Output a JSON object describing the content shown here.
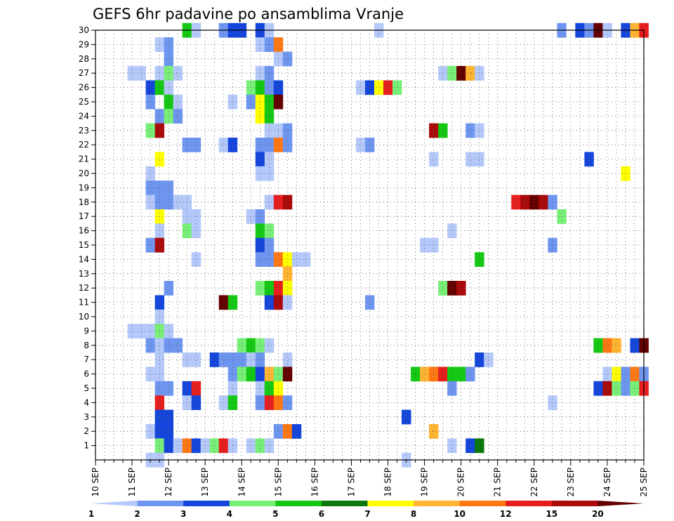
{
  "chart_data": {
    "type": "heatmap",
    "title": "GEFS 6hr padavine po ansamblima Vranje",
    "x_ticks": [
      {
        "label": "10 SEP",
        "day": 10
      },
      {
        "label": "11 SEP",
        "day": 11
      },
      {
        "label": "12 SEP",
        "day": 12
      },
      {
        "label": "13 SEP",
        "day": 13
      },
      {
        "label": "14 SEP",
        "day": 14
      },
      {
        "label": "15 SEP",
        "day": 15
      },
      {
        "label": "16 SEP",
        "day": 16
      },
      {
        "label": "17 SEP",
        "day": 17
      },
      {
        "label": "18 SEP",
        "day": 18
      },
      {
        "label": "19 SEP",
        "day": 19
      },
      {
        "label": "20 SEP",
        "day": 20
      },
      {
        "label": "21 SEP",
        "day": 21
      },
      {
        "label": "22 SEP",
        "day": 22
      },
      {
        "label": "23 SEP",
        "day": 23
      },
      {
        "label": "24 SEP",
        "day": 24
      },
      {
        "label": "25 SEP",
        "day": 25
      }
    ],
    "x_range": [
      10,
      25
    ],
    "y_ticks": [
      "1",
      "2",
      "3",
      "4",
      "5",
      "6",
      "7",
      "8",
      "9",
      "10",
      "11",
      "12",
      "13",
      "14",
      "15",
      "16",
      "17",
      "18",
      "19",
      "20",
      "21",
      "22",
      "23",
      "24",
      "25",
      "26",
      "27",
      "28",
      "29",
      "30"
    ],
    "y_range": [
      0,
      30
    ],
    "grid": true,
    "legend": {
      "placement": "bottom",
      "labels": [
        "1",
        "2",
        "3",
        "4",
        "5",
        "6",
        "7",
        "8",
        "10",
        "12",
        "15",
        "20"
      ],
      "colors": [
        "#b4c8fa",
        "#6e96f0",
        "#1446dc",
        "#78f078",
        "#14c814",
        "#0a780a",
        "#ffff00",
        "#ffb432",
        "#ff7814",
        "#e61e1e",
        "#aa0a0a",
        "#640000"
      ]
    },
    "cells": [
      [
        30,
        12.5,
        5
      ],
      [
        30,
        12.75,
        1
      ],
      [
        30,
        13.5,
        2
      ],
      [
        30,
        13.75,
        3
      ],
      [
        30,
        14,
        3
      ],
      [
        30,
        14.5,
        3
      ],
      [
        30,
        14.75,
        1
      ],
      [
        30,
        17.75,
        1
      ],
      [
        30,
        22.75,
        2
      ],
      [
        30,
        23.25,
        3
      ],
      [
        30,
        23.5,
        2
      ],
      [
        30,
        23.75,
        12
      ],
      [
        30,
        24,
        1
      ],
      [
        30,
        24.5,
        3
      ],
      [
        30,
        24.75,
        8
      ],
      [
        30,
        25,
        10
      ],
      [
        29,
        11.75,
        1
      ],
      [
        29,
        12,
        2
      ],
      [
        29,
        14.5,
        1
      ],
      [
        29,
        14.75,
        2
      ],
      [
        29,
        15,
        9
      ],
      [
        28,
        12,
        2
      ],
      [
        28,
        15,
        1
      ],
      [
        28,
        15.25,
        2
      ],
      [
        27,
        11,
        1
      ],
      [
        27,
        11.25,
        1
      ],
      [
        27,
        11.75,
        1
      ],
      [
        27,
        12,
        4
      ],
      [
        27,
        12.25,
        1
      ],
      [
        27,
        14.5,
        1
      ],
      [
        27,
        14.75,
        2
      ],
      [
        27,
        19.5,
        1
      ],
      [
        27,
        19.75,
        4
      ],
      [
        27,
        20,
        12
      ],
      [
        27,
        20.25,
        8
      ],
      [
        27,
        20.5,
        1
      ],
      [
        26,
        11.5,
        3
      ],
      [
        26,
        11.75,
        5
      ],
      [
        26,
        12,
        1
      ],
      [
        26,
        14.25,
        4
      ],
      [
        26,
        14.5,
        5
      ],
      [
        26,
        14.75,
        2
      ],
      [
        26,
        15,
        3
      ],
      [
        26,
        17.25,
        1
      ],
      [
        26,
        17.5,
        3
      ],
      [
        26,
        17.75,
        7
      ],
      [
        26,
        18,
        10
      ],
      [
        26,
        18.25,
        4
      ],
      [
        25,
        11.5,
        2
      ],
      [
        25,
        12,
        5
      ],
      [
        25,
        12.25,
        1
      ],
      [
        25,
        13.75,
        1
      ],
      [
        25,
        14.25,
        2
      ],
      [
        25,
        14.5,
        7
      ],
      [
        25,
        14.75,
        5
      ],
      [
        25,
        15,
        12
      ],
      [
        24,
        11.75,
        2
      ],
      [
        24,
        12,
        4
      ],
      [
        24,
        12.25,
        2
      ],
      [
        24,
        14.5,
        7
      ],
      [
        24,
        14.75,
        5
      ],
      [
        23,
        11.5,
        4
      ],
      [
        23,
        11.75,
        11
      ],
      [
        23,
        14.75,
        1
      ],
      [
        23,
        15,
        1
      ],
      [
        23,
        15.25,
        2
      ],
      [
        23,
        19.25,
        11
      ],
      [
        23,
        19.5,
        5
      ],
      [
        23,
        20.25,
        2
      ],
      [
        23,
        20.5,
        1
      ],
      [
        22,
        12.5,
        2
      ],
      [
        22,
        12.75,
        2
      ],
      [
        22,
        13.5,
        1
      ],
      [
        22,
        13.75,
        3
      ],
      [
        22,
        14.5,
        2
      ],
      [
        22,
        14.75,
        2
      ],
      [
        22,
        15,
        9
      ],
      [
        22,
        15.25,
        2
      ],
      [
        22,
        17.25,
        1
      ],
      [
        22,
        17.5,
        2
      ],
      [
        21,
        11.75,
        7
      ],
      [
        21,
        14.5,
        3
      ],
      [
        21,
        14.75,
        1
      ],
      [
        21,
        19.25,
        1
      ],
      [
        21,
        20.25,
        1
      ],
      [
        21,
        20.5,
        1
      ],
      [
        21,
        23.5,
        3
      ],
      [
        20,
        11.5,
        1
      ],
      [
        20,
        14.5,
        1
      ],
      [
        20,
        14.75,
        1
      ],
      [
        20,
        24.5,
        7
      ],
      [
        19,
        11.5,
        2
      ],
      [
        19,
        11.75,
        2
      ],
      [
        19,
        12,
        2
      ],
      [
        18,
        11.5,
        1
      ],
      [
        18,
        11.75,
        2
      ],
      [
        18,
        12,
        2
      ],
      [
        18,
        12.25,
        1
      ],
      [
        18,
        12.5,
        1
      ],
      [
        18,
        14.75,
        1
      ],
      [
        18,
        15,
        10
      ],
      [
        18,
        15.25,
        11
      ],
      [
        18,
        21.5,
        10
      ],
      [
        18,
        21.75,
        11
      ],
      [
        18,
        22,
        12
      ],
      [
        18,
        22.25,
        11
      ],
      [
        18,
        22.5,
        2
      ],
      [
        17,
        11.75,
        7
      ],
      [
        17,
        12.5,
        1
      ],
      [
        17,
        12.75,
        1
      ],
      [
        17,
        14.25,
        1
      ],
      [
        17,
        14.5,
        2
      ],
      [
        17,
        22.75,
        4
      ],
      [
        16,
        11.75,
        1
      ],
      [
        16,
        12.5,
        4
      ],
      [
        16,
        12.75,
        1
      ],
      [
        16,
        14.5,
        5
      ],
      [
        16,
        14.75,
        4
      ],
      [
        16,
        19.75,
        1
      ],
      [
        15,
        11.5,
        2
      ],
      [
        15,
        11.75,
        11
      ],
      [
        15,
        14.5,
        3
      ],
      [
        15,
        14.75,
        2
      ],
      [
        15,
        19,
        1
      ],
      [
        15,
        19.25,
        1
      ],
      [
        15,
        22.5,
        2
      ],
      [
        14,
        12.75,
        1
      ],
      [
        14,
        14.5,
        2
      ],
      [
        14,
        14.75,
        2
      ],
      [
        14,
        15,
        9
      ],
      [
        14,
        15.25,
        7
      ],
      [
        14,
        15.5,
        1
      ],
      [
        14,
        15.75,
        1
      ],
      [
        14,
        20.5,
        5
      ],
      [
        13,
        15.25,
        8
      ],
      [
        12,
        12,
        2
      ],
      [
        12,
        14.5,
        4
      ],
      [
        12,
        14.75,
        5
      ],
      [
        12,
        15,
        10
      ],
      [
        12,
        15.25,
        7
      ],
      [
        12,
        19.5,
        4
      ],
      [
        12,
        19.75,
        12
      ],
      [
        12,
        20,
        11
      ],
      [
        11,
        11.75,
        3
      ],
      [
        11,
        13.5,
        12
      ],
      [
        11,
        13.75,
        5
      ],
      [
        11,
        14.75,
        3
      ],
      [
        11,
        15,
        11
      ],
      [
        11,
        15.25,
        1
      ],
      [
        11,
        17.5,
        2
      ],
      [
        10,
        11.75,
        1
      ],
      [
        9,
        11,
        1
      ],
      [
        9,
        11.25,
        1
      ],
      [
        9,
        11.5,
        1
      ],
      [
        9,
        11.75,
        4
      ],
      [
        9,
        12,
        1
      ],
      [
        8,
        11.5,
        2
      ],
      [
        8,
        11.75,
        1
      ],
      [
        8,
        12,
        2
      ],
      [
        8,
        12.25,
        2
      ],
      [
        8,
        14,
        4
      ],
      [
        8,
        14.25,
        5
      ],
      [
        8,
        14.5,
        4
      ],
      [
        8,
        14.75,
        1
      ],
      [
        8,
        23.75,
        5
      ],
      [
        8,
        24,
        9
      ],
      [
        8,
        24.25,
        8
      ],
      [
        8,
        24.75,
        3
      ],
      [
        8,
        25,
        12
      ],
      [
        7,
        11.75,
        1
      ],
      [
        7,
        12.5,
        1
      ],
      [
        7,
        12.75,
        1
      ],
      [
        7,
        13.25,
        3
      ],
      [
        7,
        13.5,
        2
      ],
      [
        7,
        13.75,
        2
      ],
      [
        7,
        14,
        2
      ],
      [
        7,
        14.25,
        1
      ],
      [
        7,
        14.5,
        2
      ],
      [
        7,
        15.25,
        1
      ],
      [
        7,
        20.5,
        3
      ],
      [
        7,
        20.75,
        1
      ],
      [
        6,
        11.5,
        1
      ],
      [
        6,
        11.75,
        1
      ],
      [
        6,
        13.75,
        2
      ],
      [
        6,
        14,
        4
      ],
      [
        6,
        14.25,
        5
      ],
      [
        6,
        14.5,
        3
      ],
      [
        6,
        14.75,
        8
      ],
      [
        6,
        15,
        4
      ],
      [
        6,
        15.25,
        12
      ],
      [
        6,
        18.75,
        5
      ],
      [
        6,
        19,
        8
      ],
      [
        6,
        19.25,
        9
      ],
      [
        6,
        19.5,
        10
      ],
      [
        6,
        19.75,
        5
      ],
      [
        6,
        20,
        5
      ],
      [
        6,
        20.25,
        2
      ],
      [
        6,
        24,
        1
      ],
      [
        6,
        24.25,
        7
      ],
      [
        6,
        24.5,
        2
      ],
      [
        6,
        24.75,
        9
      ],
      [
        6,
        25,
        2
      ],
      [
        5,
        11.75,
        2
      ],
      [
        5,
        12,
        2
      ],
      [
        5,
        12.5,
        3
      ],
      [
        5,
        12.75,
        10
      ],
      [
        5,
        13.75,
        1
      ],
      [
        5,
        14.5,
        1
      ],
      [
        5,
        14.75,
        5
      ],
      [
        5,
        15,
        7
      ],
      [
        5,
        19.75,
        2
      ],
      [
        5,
        23.75,
        3
      ],
      [
        5,
        24,
        11
      ],
      [
        5,
        24.25,
        4
      ],
      [
        5,
        24.5,
        2
      ],
      [
        5,
        24.75,
        4
      ],
      [
        5,
        25,
        10
      ],
      [
        4,
        11.75,
        10
      ],
      [
        4,
        12.5,
        1
      ],
      [
        4,
        12.75,
        3
      ],
      [
        4,
        13.5,
        1
      ],
      [
        4,
        13.75,
        5
      ],
      [
        4,
        14.5,
        2
      ],
      [
        4,
        14.75,
        10
      ],
      [
        4,
        15,
        9
      ],
      [
        4,
        15.25,
        2
      ],
      [
        4,
        22.5,
        1
      ],
      [
        3,
        11.75,
        3
      ],
      [
        3,
        12,
        3
      ],
      [
        3,
        18.5,
        3
      ],
      [
        2,
        11.5,
        1
      ],
      [
        2,
        11.75,
        3
      ],
      [
        2,
        12,
        3
      ],
      [
        2,
        15,
        2
      ],
      [
        2,
        15.25,
        9
      ],
      [
        2,
        15.5,
        3
      ],
      [
        2,
        19.25,
        8
      ],
      [
        1,
        11.75,
        4
      ],
      [
        1,
        12,
        3
      ],
      [
        1,
        12.25,
        1
      ],
      [
        1,
        12.5,
        9
      ],
      [
        1,
        12.75,
        3
      ],
      [
        1,
        13,
        1
      ],
      [
        1,
        13.25,
        4
      ],
      [
        1,
        13.5,
        10
      ],
      [
        1,
        13.75,
        1
      ],
      [
        1,
        14.25,
        1
      ],
      [
        1,
        14.5,
        4
      ],
      [
        1,
        14.75,
        1
      ],
      [
        1,
        19.75,
        1
      ],
      [
        1,
        20.25,
        3
      ],
      [
        1,
        20.5,
        6
      ],
      [
        0,
        11.5,
        1
      ],
      [
        0,
        11.75,
        1
      ],
      [
        0,
        18.5,
        1
      ]
    ]
  }
}
